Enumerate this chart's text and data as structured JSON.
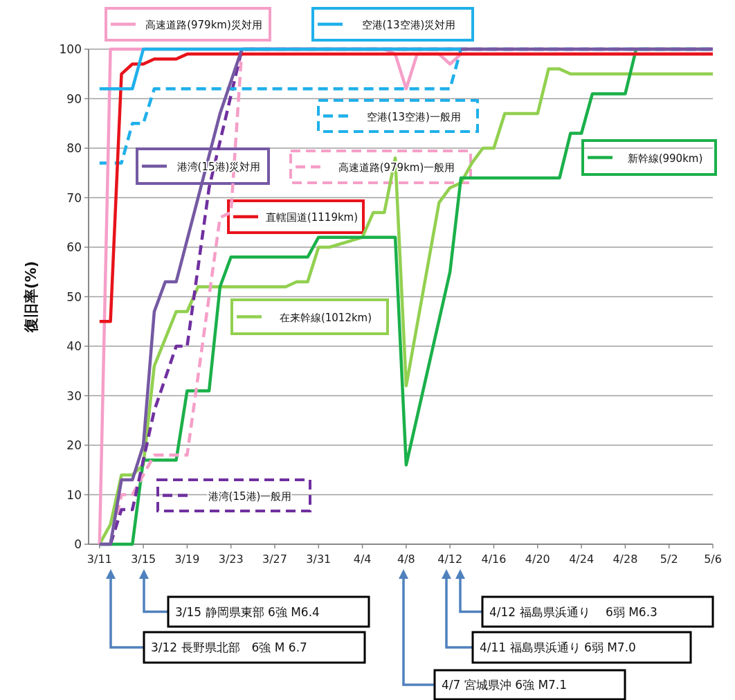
{
  "chart_data": {
    "type": "line",
    "ylabel": "復旧率(%)",
    "grid": "y",
    "xlim": [
      "--03-10",
      "--05-06"
    ],
    "xticks": [
      {
        "value": "--03-11",
        "label": "3/11"
      },
      {
        "value": "--03-15",
        "label": "3/15"
      },
      {
        "value": "--03-19",
        "label": "3/19"
      },
      {
        "value": "--03-23",
        "label": "3/23"
      },
      {
        "value": "--03-27",
        "label": "3/27"
      },
      {
        "value": "--03-31",
        "label": "3/31"
      },
      {
        "value": "--04-04",
        "label": "4/4"
      },
      {
        "value": "--04-08",
        "label": "4/8"
      },
      {
        "value": "--04-12",
        "label": "4/12"
      },
      {
        "value": "--04-16",
        "label": "4/16"
      },
      {
        "value": "--04-20",
        "label": "4/20"
      },
      {
        "value": "--04-24",
        "label": "4/24"
      },
      {
        "value": "--04-28",
        "label": "4/28"
      },
      {
        "value": "--05-02",
        "label": "5/2"
      },
      {
        "value": "--05-06",
        "label": "5/6"
      }
    ],
    "legend": "top",
    "ylim": [
      0,
      100
    ],
    "yticks": [
      0,
      10,
      20,
      30,
      40,
      50,
      60,
      70,
      80,
      90,
      100
    ],
    "series": [
      {
        "name": "在来幹線(1012km)",
        "color": "#92d050",
        "line_style": "solid",
        "x": [
          "--03-11",
          "--03-12",
          "--03-13",
          "--03-14",
          "--03-15",
          "--03-16",
          "--03-18",
          "--03-19",
          "--03-20",
          "--03-28",
          "--03-29",
          "--03-30",
          "--03-31",
          "--04-01",
          "--04-04",
          "--04-05",
          "--04-06",
          "--04-07",
          "--04-08",
          "--04-11",
          "--04-12",
          "--04-13",
          "--04-14",
          "--04-15",
          "--04-16",
          "--04-17",
          "--04-20",
          "--04-21",
          "--04-22",
          "--04-23",
          "--05-06"
        ],
        "values": [
          0,
          4,
          14,
          14,
          16,
          36,
          47,
          47,
          52,
          52,
          53,
          53,
          60,
          60,
          62,
          67,
          67,
          78,
          32,
          69,
          72,
          73,
          77,
          80,
          80,
          87,
          87,
          96,
          96,
          95,
          95
        ]
      },
      {
        "name": "新幹線(990km)",
        "color": "#1bb04a",
        "line_style": "solid",
        "x": [
          "--03-11",
          "--03-14",
          "--03-15",
          "--03-18",
          "--03-19",
          "--03-21",
          "--03-22",
          "--03-23",
          "--03-30",
          "--03-31",
          "--04-07",
          "--04-08",
          "--04-12",
          "--04-13",
          "--04-22",
          "--04-23",
          "--04-24",
          "--04-25",
          "--04-28",
          "--04-29",
          "--05-06"
        ],
        "values": [
          0,
          0,
          17,
          17,
          31,
          31,
          52,
          58,
          58,
          62,
          62,
          16,
          55,
          74,
          74,
          83,
          83,
          91,
          91,
          100,
          100
        ]
      },
      {
        "name": "高速道路(979km)一般用",
        "color": "#f59fc8",
        "line_style": "dashed",
        "x": [
          "--03-12",
          "--03-13",
          "--03-14",
          "--03-16",
          "--03-19",
          "--03-22",
          "--03-23",
          "--03-24",
          "--05-06"
        ],
        "values": [
          0,
          10,
          10,
          18,
          18,
          66,
          67,
          100,
          100
        ]
      },
      {
        "name": "港湾(15港)一般用",
        "color": "#7030a0",
        "line_style": "dashed",
        "x": [
          "--03-12",
          "--03-13",
          "--03-14",
          "--03-16",
          "--03-18",
          "--03-19",
          "--03-21",
          "--03-24",
          "--05-06"
        ],
        "values": [
          0,
          7,
          7,
          27,
          40,
          40,
          72,
          100,
          100
        ]
      },
      {
        "name": "空港(13空港)一般用",
        "color": "#1fb0ea",
        "line_style": "dashed",
        "x": [
          "--03-11",
          "--03-13",
          "--03-14",
          "--03-15",
          "--03-16",
          "--04-12",
          "--04-13",
          "--05-06"
        ],
        "values": [
          77,
          77,
          85,
          85,
          92,
          92,
          100,
          100
        ]
      },
      {
        "name": "高速道路(979km)災対用",
        "color": "#f59fc8",
        "line_style": "solid",
        "x": [
          "--03-11",
          "--03-12",
          "--04-06",
          "--04-07",
          "--04-08",
          "--04-09",
          "--04-11",
          "--04-12",
          "--04-13",
          "--05-06"
        ],
        "values": [
          0,
          100,
          100,
          99,
          92,
          99,
          99,
          97,
          99,
          99
        ]
      },
      {
        "name": "直轄国道(1119km)",
        "color": "#e8131b",
        "line_style": "solid",
        "x": [
          "--03-11",
          "--03-12",
          "--03-13",
          "--03-14",
          "--03-15",
          "--03-16",
          "--03-18",
          "--03-19",
          "--05-06"
        ],
        "values": [
          45,
          45,
          95,
          97,
          97,
          98,
          98,
          99,
          99
        ]
      },
      {
        "name": "港湾(15港)災対用",
        "color": "#7559a3",
        "line_style": "solid",
        "x": [
          "--03-11",
          "--03-12",
          "--03-13",
          "--03-14",
          "--03-15",
          "--03-16",
          "--03-17",
          "--03-18",
          "--03-22",
          "--03-24",
          "--05-06"
        ],
        "values": [
          0,
          0,
          13,
          13,
          20,
          47,
          53,
          53,
          87,
          100,
          100
        ]
      },
      {
        "name": "空港(13空港)災対用",
        "color": "#1fb0ea",
        "line_style": "solid",
        "x": [
          "--03-11",
          "--03-14",
          "--03-15",
          "--04-13"
        ],
        "values": [
          92,
          92,
          100,
          100
        ]
      }
    ],
    "annotations": [
      "3/15  静岡県東部 6強 M6.4",
      "3/12  長野県北部　6強 M 6.7",
      "4/12  福島県浜通り　 6弱 M6.3",
      "4/11  福島県浜通り 6弱 M7.0",
      "4/7  宮城県沖 6強 M7.1"
    ]
  }
}
